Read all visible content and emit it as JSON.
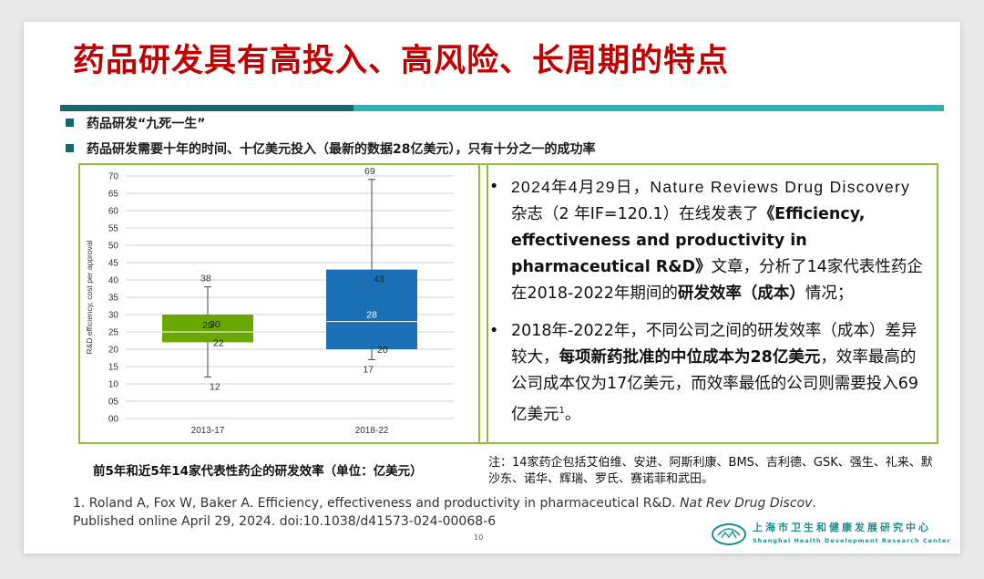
{
  "title": "药品研发具有高投入、高风险、长周期的特点",
  "bullets": [
    "药品研发“九死一生”",
    "药品研发需要十年的时间、十亿美元投入（最新的数据28亿美元），只有十分之一的成功率"
  ],
  "chart_data": {
    "type": "boxplot",
    "title": "",
    "ylabel": "R&D efficiency, cost per approval",
    "ylim": [
      0,
      70
    ],
    "yticks": [
      "00",
      "05",
      "10",
      "15",
      "20",
      "25",
      "30",
      "35",
      "40",
      "45",
      "50",
      "55",
      "60",
      "65",
      "70"
    ],
    "categories": [
      "2013-17",
      "2018-22"
    ],
    "boxes": [
      {
        "category": "2013-17",
        "min": 12,
        "q1": 22,
        "median": 25,
        "q3": 30,
        "max": 38,
        "color": "#6aa800",
        "labels": {
          "min": "12",
          "q1": "22",
          "median": "25",
          "q3": "30",
          "max": "38"
        }
      },
      {
        "category": "2018-22",
        "min": 17,
        "q1": 20,
        "median": 28,
        "q3": 43,
        "max": 69,
        "color": "#1a6fb5",
        "labels": {
          "min": "17",
          "q1": "20",
          "median": "28",
          "q3": "43",
          "max": "69"
        }
      }
    ],
    "grid": true
  },
  "chart_caption": "前5年和近5年14家代表性药企的研发效率（单位：亿美元）",
  "text_box": {
    "bullet": "•",
    "item1": {
      "date": "2024年4月29日，Nature Reviews Drug Discovery",
      "p1": " 杂志（2 年IF=120.1）在线发表了",
      "article": "《Efficiency, effectiveness and productivity in pharmaceutical R&D》",
      "p2": "文章，分析了14家代表性药企在2018-2022年期间的",
      "strong": "研发效率（成本）",
      "p3": "情况；"
    },
    "item2": {
      "p1": "2018年-2022年，不同公司之间的研发效率（成本）差异较大，",
      "strong": "每项新药批准的中位成本为28亿美元",
      "p2": "，效率最高的公司成本仅为17亿美元，而效率最低的公司则需要投入69亿美元",
      "sup": "1",
      "p3": "。"
    }
  },
  "note": "注：14家药企包括艾伯维、安进、阿斯利康、BMS、吉利德、GSK、强生、礼来、默沙东、诺华、辉瑞、罗氏、赛诺菲和武田。",
  "reference": {
    "p1": "1. Roland A, Fox W, Baker A. Efficiency, effectiveness and productivity in pharmaceutical R&D. ",
    "journal": "Nat Rev Drug Discov",
    "p2": ". Published online April 29, 2024. doi:10.1038/d41573-024-00068-6"
  },
  "page_number": "10",
  "org": {
    "name_cn": "上海市卫生和健康发展研究中心",
    "name_en": "Shanghai Health Development Research Center"
  },
  "colors": {
    "title": "#c00000",
    "accent_dark": "#15696c",
    "accent_light": "#27b5b6",
    "box_border": "#8fbf3c"
  }
}
